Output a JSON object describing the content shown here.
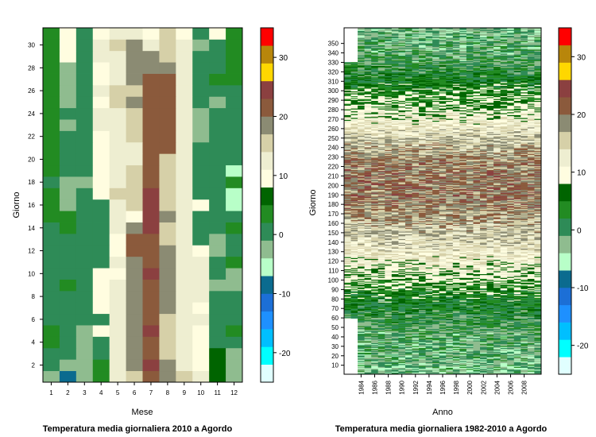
{
  "palette": [
    "#e0ffff",
    "#00ffff",
    "#00bfff",
    "#1e90ff",
    "#1c6fd6",
    "#0b6b8f",
    "#b8ffc8",
    "#8fbc8f",
    "#2e8b57",
    "#228b22",
    "#006400",
    "#fffde0",
    "#eeeed1",
    "#d6d0a8",
    "#8b8b73",
    "#8b5a3c",
    "#8b4040",
    "#ffd700",
    "#b8860b",
    "#ff0000"
  ],
  "charts": [
    {
      "title": "Temperatura media giornaliera 2010 a Agordo",
      "xlabel": "Mese",
      "ylabel": "Giorno",
      "x_ticks": [
        "1",
        "2",
        "3",
        "4",
        "5",
        "6",
        "7",
        "8",
        "9",
        "10",
        "11",
        "12"
      ],
      "y_ticks": [
        "2",
        "4",
        "6",
        "8",
        "10",
        "12",
        "14",
        "16",
        "18",
        "20",
        "22",
        "24",
        "26",
        "28",
        "30"
      ],
      "colorbar_ticks": [
        "-20",
        "-10",
        "0",
        "10",
        "20",
        "30"
      ]
    },
    {
      "title": "Temperatura media giornaliera 1982-2010 a Agordo",
      "xlabel": "Anno",
      "ylabel": "Giorno",
      "x_ticks": [
        "1984",
        "1986",
        "1988",
        "1990",
        "1992",
        "1994",
        "1996",
        "1998",
        "2000",
        "2002",
        "2004",
        "2006",
        "2008"
      ],
      "y_ticks": [
        "10",
        "20",
        "30",
        "40",
        "50",
        "60",
        "70",
        "80",
        "90",
        "100",
        "110",
        "120",
        "130",
        "140",
        "150",
        "160",
        "170",
        "180",
        "190",
        "200",
        "210",
        "220",
        "230",
        "240",
        "250",
        "260",
        "270",
        "280",
        "290",
        "300",
        "310",
        "320",
        "330",
        "340",
        "350"
      ],
      "colorbar_ticks": [
        "-20",
        "-10",
        "0",
        "10",
        "20",
        "30"
      ]
    }
  ],
  "chart_data": [
    {
      "type": "heatmap",
      "title": "Temperatura media giornaliera 2010 a Agordo",
      "xlabel": "Mese",
      "ylabel": "Giorno",
      "x": [
        1,
        2,
        3,
        4,
        5,
        6,
        7,
        8,
        9,
        10,
        11,
        12
      ],
      "y": [
        1,
        2,
        3,
        4,
        5,
        6,
        7,
        8,
        9,
        10,
        11,
        12,
        13,
        14,
        15,
        16,
        17,
        18,
        19,
        20,
        21,
        22,
        23,
        24,
        25,
        26,
        27,
        28,
        29,
        30,
        31
      ],
      "colorbar": {
        "range": [
          -25,
          35
        ],
        "step": 3.5,
        "ticks": [
          -20,
          -10,
          0,
          10,
          20,
          30
        ]
      },
      "z": [
        [
          -2,
          -9,
          -3,
          3,
          13,
          16,
          22,
          18,
          14,
          12,
          6,
          -2
        ],
        [
          0,
          -2,
          -3,
          3,
          13,
          17,
          23,
          17,
          13,
          10,
          6,
          -2
        ],
        [
          1,
          -1,
          -3,
          -1,
          13,
          18,
          22,
          15,
          12,
          10,
          6,
          -2
        ],
        [
          3,
          -1,
          -3,
          -1,
          13,
          18,
          21,
          16,
          11,
          10,
          -1,
          1
        ],
        [
          3,
          1,
          -3,
          9,
          12,
          18,
          23,
          15,
          11,
          10,
          -1,
          4
        ],
        [
          -1,
          -1,
          1,
          -1,
          11,
          18,
          22,
          15,
          11,
          12,
          -1,
          -1
        ],
        [
          -1,
          -1,
          1,
          9,
          11,
          18,
          21,
          17,
          12,
          10,
          1,
          -1
        ],
        [
          -1,
          1,
          1,
          9,
          11,
          18,
          22,
          17,
          13,
          11,
          1,
          -1
        ],
        [
          -1,
          4,
          -1,
          9,
          11,
          17,
          21,
          18,
          13,
          12,
          -2,
          -2
        ],
        [
          -1,
          -1,
          -1,
          9,
          10,
          17,
          24,
          17,
          11,
          12,
          0,
          -2
        ],
        [
          -1,
          -1,
          -1,
          -1,
          11,
          18,
          21,
          17,
          11,
          12,
          0,
          2
        ],
        [
          -1,
          -1,
          -1,
          1,
          9,
          21,
          22,
          17,
          12,
          9,
          -2,
          -1
        ],
        [
          -1,
          -1,
          -1,
          1,
          10,
          20,
          22,
          16,
          13,
          -1,
          -2,
          -1
        ],
        [
          -1,
          2,
          -1,
          -1,
          11,
          18,
          25,
          14,
          12,
          -1,
          -1,
          3
        ],
        [
          2,
          2,
          -1,
          -1,
          11,
          10,
          24,
          17,
          12,
          -1,
          -1,
          1
        ],
        [
          2,
          -2,
          -1,
          -1,
          11,
          14,
          25,
          14,
          11,
          8,
          -1,
          -6
        ],
        [
          3,
          -2,
          -1,
          8,
          14,
          14,
          25,
          14,
          11,
          -1,
          -1,
          -6
        ],
        [
          1,
          -2,
          -2,
          8,
          12,
          14,
          21,
          14,
          11,
          -1,
          -1,
          4
        ],
        [
          2,
          -1,
          -1,
          9,
          11,
          14,
          20,
          14,
          11,
          -1,
          -1,
          -7
        ],
        [
          3,
          -1,
          -1,
          9,
          12,
          13,
          21,
          16,
          12,
          -1,
          -1,
          -1
        ],
        [
          3,
          -1,
          1,
          9,
          12,
          13,
          21,
          21,
          12,
          -1,
          -1,
          -1
        ],
        [
          3,
          -1,
          1,
          9,
          12,
          14,
          20,
          21,
          13,
          -2,
          -1,
          1
        ],
        [
          2,
          -2,
          1,
          11,
          13,
          16,
          20,
          21,
          12,
          -2,
          -1,
          -1
        ],
        [
          3,
          -1,
          1,
          11,
          12,
          16,
          20,
          20,
          12,
          -2,
          -1,
          -1
        ],
        [
          2,
          -2,
          1,
          10,
          14,
          18,
          20,
          20,
          13,
          -1,
          -2,
          -1
        ],
        [
          4,
          -2,
          1,
          11,
          16,
          16,
          20,
          21,
          13,
          -1,
          0,
          -1
        ],
        [
          2,
          -2,
          1,
          9,
          13,
          19,
          20,
          20,
          12,
          1,
          3,
          2
        ],
        [
          3,
          -2,
          -1,
          10,
          11,
          19,
          19,
          19,
          12,
          0,
          -1,
          2
        ],
        [
          4,
          9,
          -1,
          12,
          13,
          19,
          19,
          14,
          13,
          -1,
          -1,
          4
        ],
        [
          3,
          10,
          1,
          12,
          14,
          19,
          11,
          15,
          12,
          -2,
          -1,
          4
        ],
        [
          2,
          9,
          -1,
          8,
          11,
          13,
          9,
          14,
          9,
          -1,
          8,
          4
        ]
      ]
    },
    {
      "type": "heatmap",
      "title": "Temperatura media giornaliera 1982-2010 a Agordo",
      "xlabel": "Anno",
      "ylabel": "Giorno",
      "x_range": [
        1982,
        2010
      ],
      "y_range": [
        1,
        366
      ],
      "colorbar": {
        "range": [
          -25,
          35
        ],
        "step": 3.5,
        "ticks": [
          -20,
          -10,
          0,
          10,
          20,
          30
        ]
      },
      "z_description_profile": {
        "days": [
          1,
          15,
          30,
          45,
          60,
          75,
          90,
          105,
          120,
          135,
          150,
          165,
          180,
          195,
          210,
          225,
          240,
          255,
          270,
          285,
          300,
          315,
          330,
          345,
          365
        ],
        "mean_temperature": [
          -2,
          -1.5,
          -1,
          0,
          1.5,
          3.5,
          6,
          9,
          11.5,
          13.5,
          15.5,
          17.5,
          19.5,
          20,
          20,
          19,
          17,
          14,
          11.5,
          8,
          6,
          3,
          0.5,
          -1,
          -2
        ]
      }
    }
  ]
}
